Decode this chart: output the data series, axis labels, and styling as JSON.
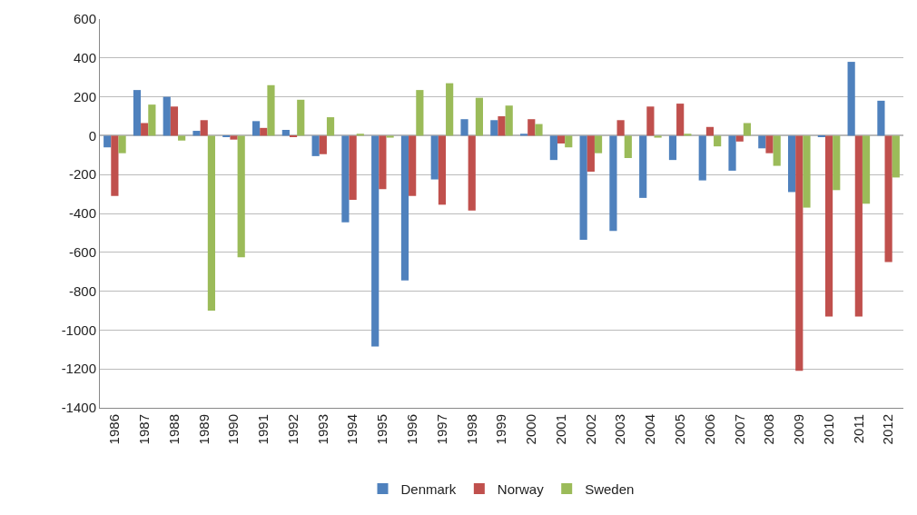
{
  "chart_data": {
    "type": "bar",
    "categories": [
      "1986",
      "1987",
      "1988",
      "1989",
      "1990",
      "1991",
      "1992",
      "1993",
      "1994",
      "1995",
      "1996",
      "1997",
      "1998",
      "1999",
      "2000",
      "2001",
      "2002",
      "2003",
      "2004",
      "2005",
      "2006",
      "2007",
      "2008",
      "2009",
      "2010",
      "2011",
      "2012"
    ],
    "series": [
      {
        "name": "Denmark",
        "color": "#4f81bd",
        "values": [
          -60,
          235,
          200,
          25,
          -5,
          75,
          30,
          -105,
          -445,
          -1085,
          -745,
          -225,
          85,
          80,
          10,
          -125,
          -535,
          -490,
          -320,
          -125,
          -230,
          -180,
          -65,
          -290,
          -5,
          380,
          180
        ]
      },
      {
        "name": "Norway",
        "color": "#c0504d",
        "values": [
          -310,
          65,
          150,
          80,
          -20,
          40,
          -5,
          -95,
          -330,
          -275,
          -310,
          -355,
          -385,
          100,
          85,
          -40,
          -185,
          80,
          150,
          165,
          45,
          -30,
          -90,
          -1210,
          -930,
          -930,
          -650
        ]
      },
      {
        "name": "Sweden",
        "color": "#9bbb59",
        "values": [
          -90,
          160,
          -25,
          -900,
          -625,
          260,
          185,
          95,
          10,
          -10,
          235,
          270,
          195,
          155,
          60,
          -60,
          -90,
          -115,
          -10,
          10,
          -55,
          65,
          -155,
          -370,
          -280,
          -350,
          -215
        ]
      }
    ],
    "ylim": [
      -1400,
      600
    ],
    "yticks": [
      -1400,
      -1200,
      -1000,
      -800,
      -600,
      -400,
      -200,
      0,
      200,
      400,
      600
    ],
    "grid": "y",
    "legend": "bottom"
  }
}
